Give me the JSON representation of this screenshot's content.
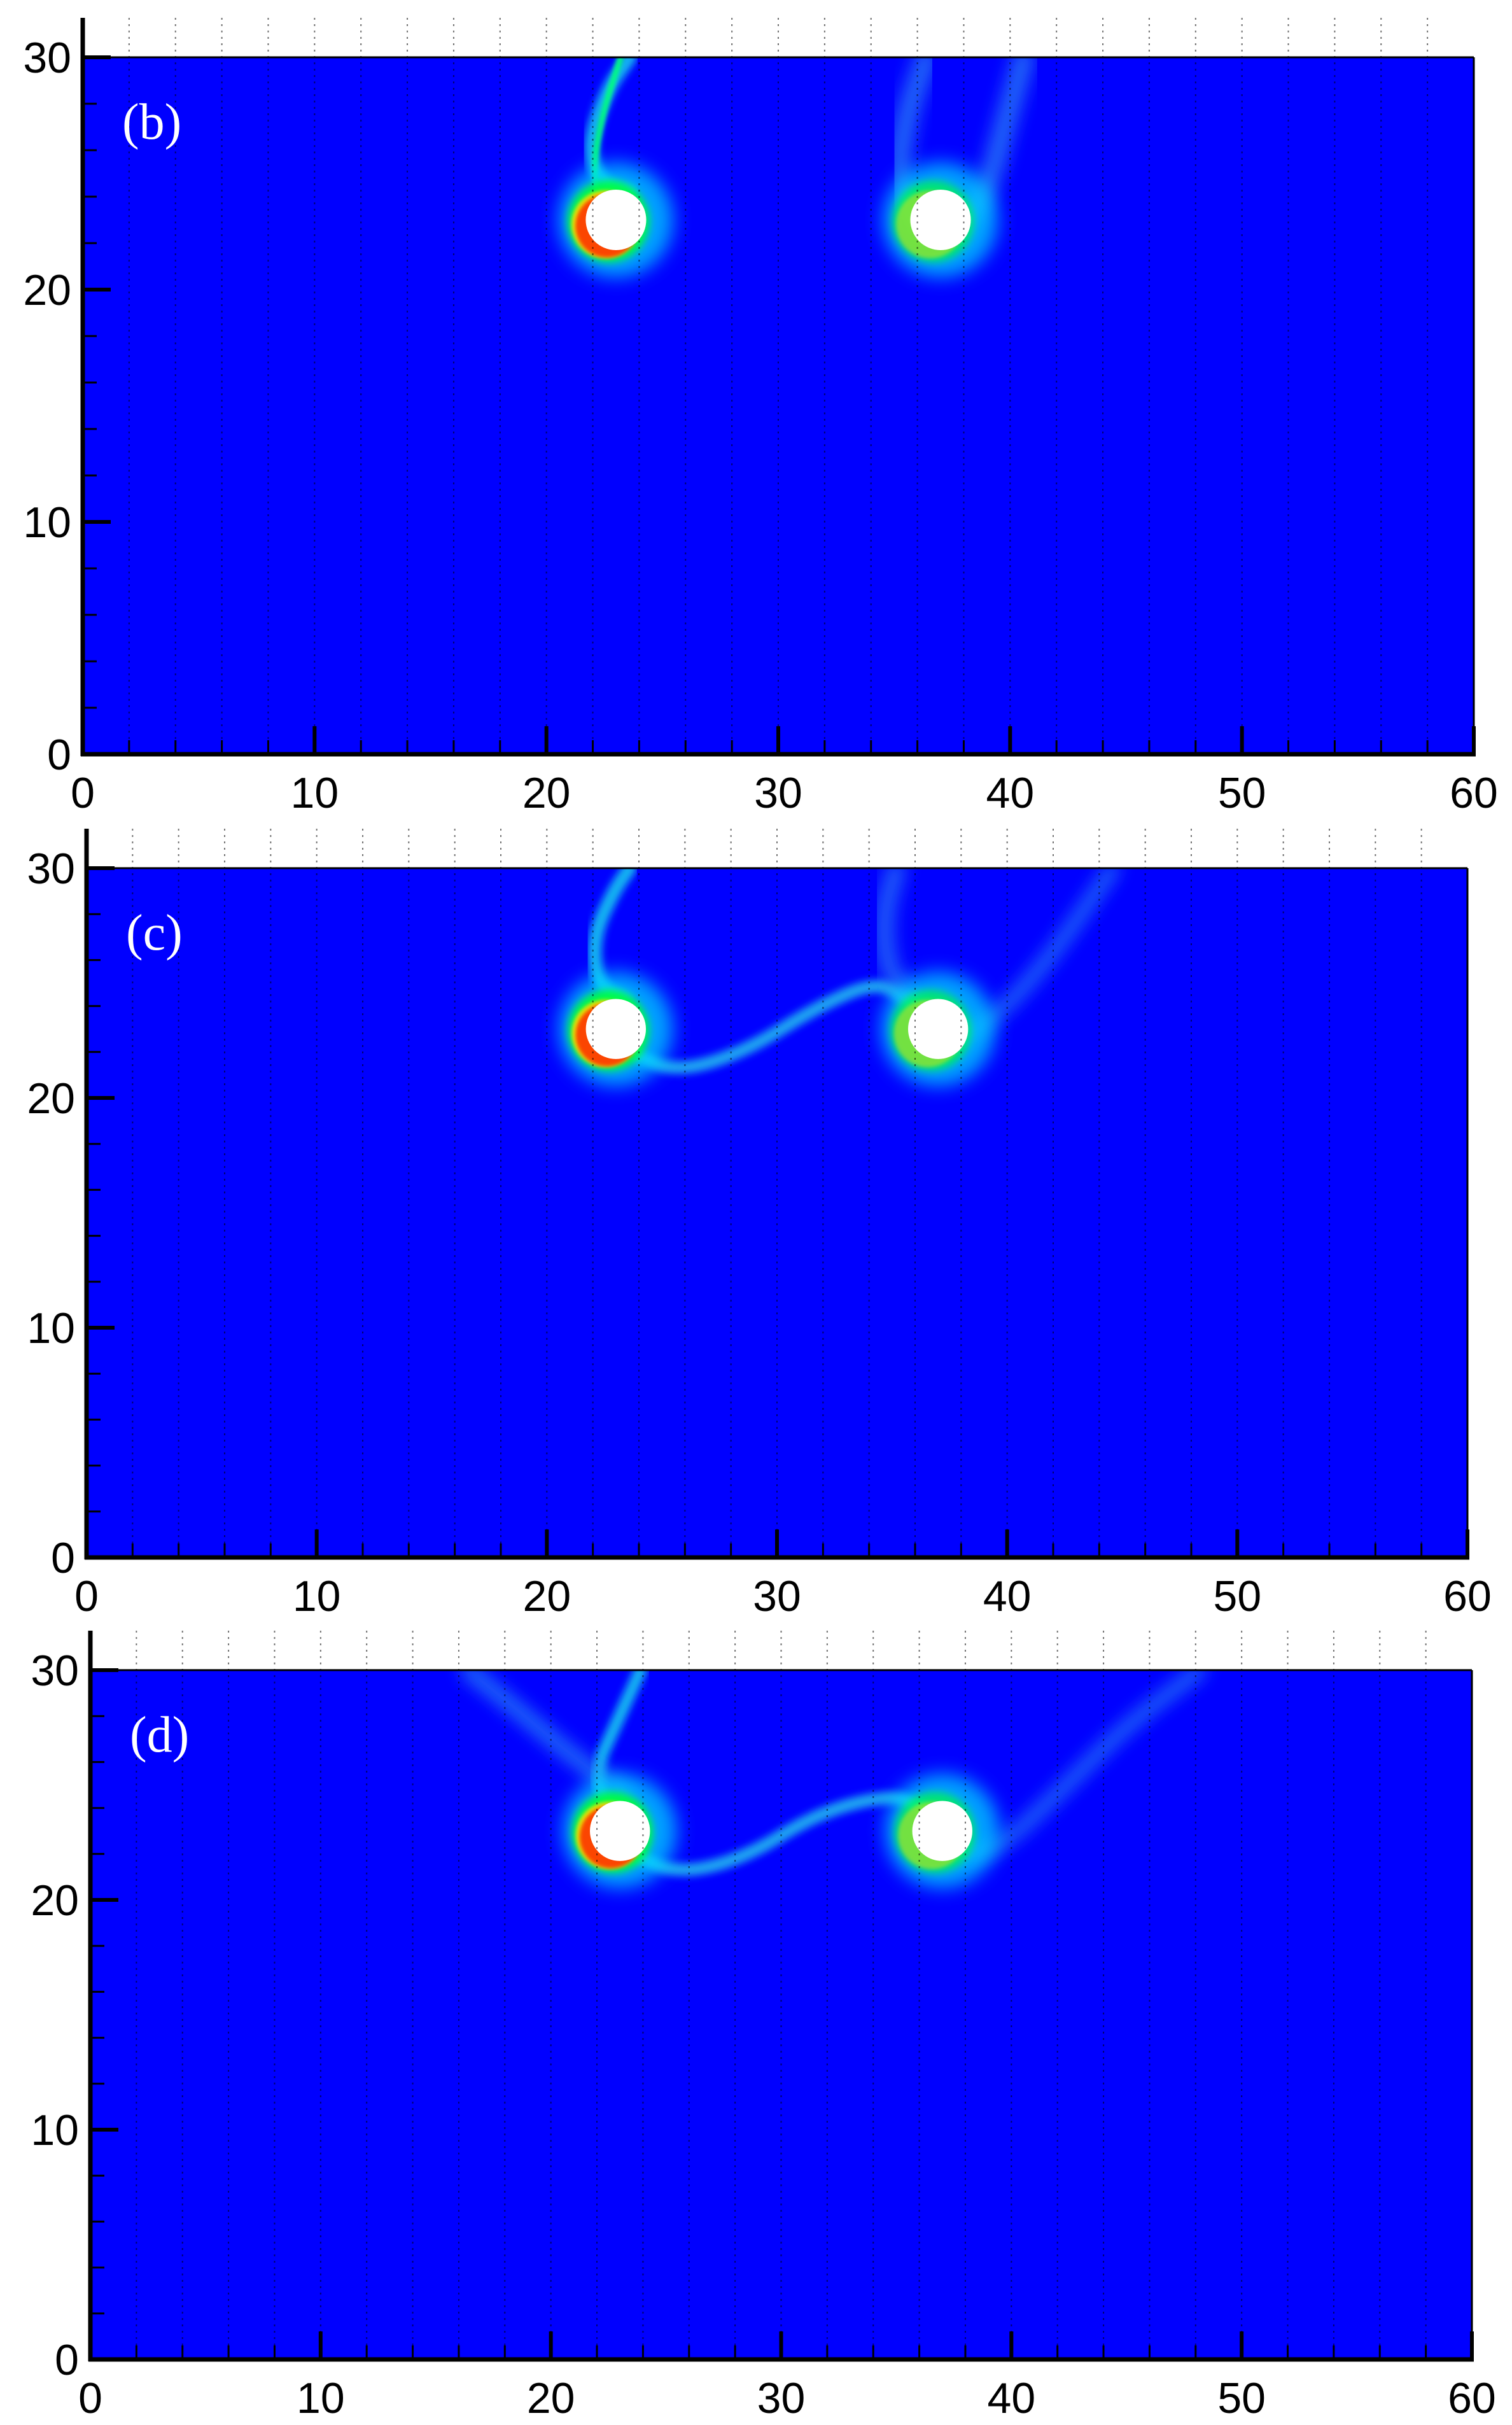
{
  "figure": {
    "background": "#ffffff"
  },
  "chart_data": [
    {
      "type": "heatmap",
      "panel_label": "(b)",
      "title": "",
      "xlabel": "",
      "ylabel": "",
      "xlim": [
        0,
        60
      ],
      "ylim": [
        0,
        30
      ],
      "xticks": [
        0,
        10,
        20,
        30,
        40,
        50,
        60
      ],
      "yticks": [
        0,
        10,
        20,
        30
      ],
      "grid": "vertical dotted lines every 2 units",
      "colormap": [
        "#0000ff",
        "#00ffff",
        "#00ff00",
        "#ffff00",
        "#ff0000"
      ],
      "background_value_color": "#0000ff",
      "obstacles": [
        {
          "shape": "circle",
          "x": 23,
          "y": 23,
          "r": 0.9,
          "color": "#ffffff"
        },
        {
          "shape": "circle",
          "x": 37,
          "y": 23,
          "r": 0.9,
          "color": "#ffffff"
        }
      ]
    },
    {
      "type": "heatmap",
      "panel_label": "(c)",
      "title": "",
      "xlabel": "",
      "ylabel": "",
      "xlim": [
        0,
        60
      ],
      "ylim": [
        0,
        30
      ],
      "xticks": [
        0,
        10,
        20,
        30,
        40,
        50,
        60
      ],
      "yticks": [
        0,
        10,
        20,
        30
      ],
      "grid": "vertical dotted lines every 2 units",
      "colormap": [
        "#0000ff",
        "#00ffff",
        "#00ff00",
        "#ffff00",
        "#ff0000"
      ],
      "background_value_color": "#0000ff",
      "obstacles": [
        {
          "shape": "circle",
          "x": 23,
          "y": 23,
          "r": 0.9,
          "color": "#ffffff"
        },
        {
          "shape": "circle",
          "x": 37,
          "y": 23,
          "r": 0.9,
          "color": "#ffffff"
        }
      ]
    },
    {
      "type": "heatmap",
      "panel_label": "(d)",
      "title": "",
      "xlabel": "",
      "ylabel": "",
      "xlim": [
        0,
        60
      ],
      "ylim": [
        0,
        30
      ],
      "xticks": [
        0,
        10,
        20,
        30,
        40,
        50,
        60
      ],
      "yticks": [
        0,
        10,
        20,
        30
      ],
      "grid": "vertical dotted lines every 2 units",
      "colormap": [
        "#0000ff",
        "#00ffff",
        "#00ff00",
        "#ffff00",
        "#ff0000"
      ],
      "background_value_color": "#0000ff",
      "obstacles": [
        {
          "shape": "circle",
          "x": 23,
          "y": 23,
          "r": 0.9,
          "color": "#ffffff"
        },
        {
          "shape": "circle",
          "x": 37,
          "y": 23,
          "r": 0.9,
          "color": "#ffffff"
        }
      ]
    }
  ]
}
